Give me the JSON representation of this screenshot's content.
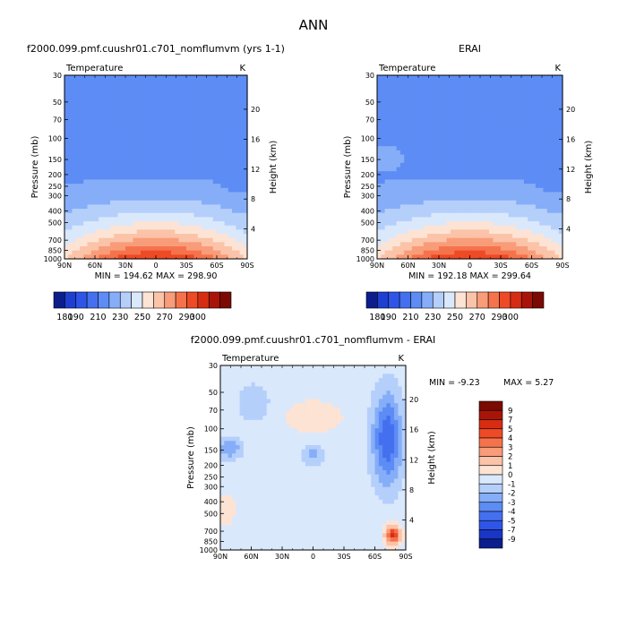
{
  "page_title": "ANN",
  "colors": {
    "base_scale": [
      "#0b1e8c",
      "#1e3fd0",
      "#2f55e8",
      "#4470f0",
      "#5d8cf5",
      "#86aef8",
      "#b5cffb",
      "#dae8fc",
      "#fde3d4",
      "#fbc3a8",
      "#f89c79",
      "#f5734c",
      "#ee4a26",
      "#d62d12",
      "#a81508",
      "#7a0a03"
    ],
    "diff_scale": [
      "#0b1e8c",
      "#1a36c6",
      "#2f55e8",
      "#4470f0",
      "#5d8cf5",
      "#86aef8",
      "#b5cffb",
      "#dae8fc",
      "#fde3d4",
      "#fbc3a8",
      "#f89c79",
      "#f5734c",
      "#ee4a26",
      "#d62d12",
      "#a81508",
      "#7a0a03"
    ]
  },
  "chart_data": [
    {
      "id": "model",
      "type": "heatmap",
      "title": "f2000.099.pmf.cuushr01.c701_nomflumvm (yrs 1-1)",
      "subtitle_left": "Temperature",
      "subtitle_right": "K",
      "xlabel": "",
      "ylabel": "Pressure (mb)",
      "ylabel_right": "Height (km)",
      "x_ticks": [
        "90N",
        "60N",
        "30N",
        "0",
        "30S",
        "60S",
        "90S"
      ],
      "x_values": [
        90,
        60,
        30,
        0,
        -30,
        -60,
        -90
      ],
      "y_ticks": [
        "30",
        "50",
        "70",
        "100",
        "150",
        "200",
        "250",
        "300",
        "400",
        "500",
        "700",
        "850",
        "1000"
      ],
      "y_values": [
        30,
        50,
        70,
        100,
        150,
        200,
        250,
        300,
        400,
        500,
        700,
        850,
        1000
      ],
      "ylim": [
        1000,
        30
      ],
      "height_ticks": [
        "20",
        "16",
        "12",
        "8",
        "4"
      ],
      "height_values": [
        20,
        16,
        12,
        8,
        4
      ],
      "stats": "MIN = 194.62   MAX = 298.90",
      "min": 194.62,
      "max": 298.9,
      "legend": {
        "orientation": "horizontal",
        "levels": [
          180,
          190,
          200,
          210,
          220,
          230,
          240,
          250,
          260,
          270,
          280,
          290,
          300
        ],
        "labels": [
          "180",
          "190",
          "210",
          "230",
          "250",
          "270",
          "290",
          "300"
        ]
      }
    },
    {
      "id": "obs",
      "type": "heatmap",
      "title": "ERAI",
      "subtitle_left": "Temperature",
      "subtitle_right": "K",
      "xlabel": "",
      "ylabel": "Pressure (mb)",
      "ylabel_right": "Height (km)",
      "x_ticks": [
        "90N",
        "60N",
        "30N",
        "0",
        "30S",
        "60S",
        "90S"
      ],
      "x_values": [
        90,
        60,
        30,
        0,
        -30,
        -60,
        -90
      ],
      "y_ticks": [
        "30",
        "50",
        "70",
        "100",
        "150",
        "200",
        "250",
        "300",
        "400",
        "500",
        "700",
        "850",
        "1000"
      ],
      "y_values": [
        30,
        50,
        70,
        100,
        150,
        200,
        250,
        300,
        400,
        500,
        700,
        850,
        1000
      ],
      "ylim": [
        1000,
        30
      ],
      "height_ticks": [
        "20",
        "16",
        "12",
        "8",
        "4"
      ],
      "height_values": [
        20,
        16,
        12,
        8,
        4
      ],
      "stats": "MIN = 192.18   MAX = 299.64",
      "min": 192.18,
      "max": 299.64,
      "legend": {
        "orientation": "horizontal",
        "levels": [
          180,
          190,
          200,
          210,
          220,
          230,
          240,
          250,
          260,
          270,
          280,
          290,
          300
        ],
        "labels": [
          "180",
          "190",
          "210",
          "230",
          "250",
          "270",
          "290",
          "300"
        ]
      }
    },
    {
      "id": "diff",
      "type": "heatmap",
      "title": "f2000.099.pmf.cuushr01.c701_nomflumvm - ERAI",
      "subtitle_left": "Temperature",
      "subtitle_right": "K",
      "xlabel": "",
      "ylabel": "Pressure (mb)",
      "ylabel_right": "Height (km)",
      "x_ticks": [
        "90N",
        "60N",
        "30N",
        "0",
        "30S",
        "60S",
        "90S"
      ],
      "x_values": [
        90,
        60,
        30,
        0,
        -30,
        -60,
        -90
      ],
      "y_ticks": [
        "30",
        "50",
        "70",
        "100",
        "150",
        "200",
        "250",
        "300",
        "400",
        "500",
        "700",
        "850",
        "1000"
      ],
      "y_values": [
        30,
        50,
        70,
        100,
        150,
        200,
        250,
        300,
        400,
        500,
        700,
        850,
        1000
      ],
      "ylim": [
        1000,
        30
      ],
      "height_ticks": [
        "20",
        "16",
        "12",
        "8",
        "4"
      ],
      "height_values": [
        20,
        16,
        12,
        8,
        4
      ],
      "stats_min": "MIN =  -9.23",
      "stats_max": "MAX =   5.27",
      "min": -9.23,
      "max": 5.27,
      "legend": {
        "orientation": "vertical",
        "levels": [
          -9,
          -7,
          -5,
          -4,
          -3,
          -2,
          -1,
          0,
          1,
          2,
          3,
          4,
          5,
          7,
          9
        ],
        "labels": [
          "9",
          "7",
          "5",
          "4",
          "3",
          "2",
          "1",
          "0",
          "-1",
          "-2",
          "-3",
          "-4",
          "-5",
          "-7",
          "-9"
        ]
      }
    }
  ]
}
